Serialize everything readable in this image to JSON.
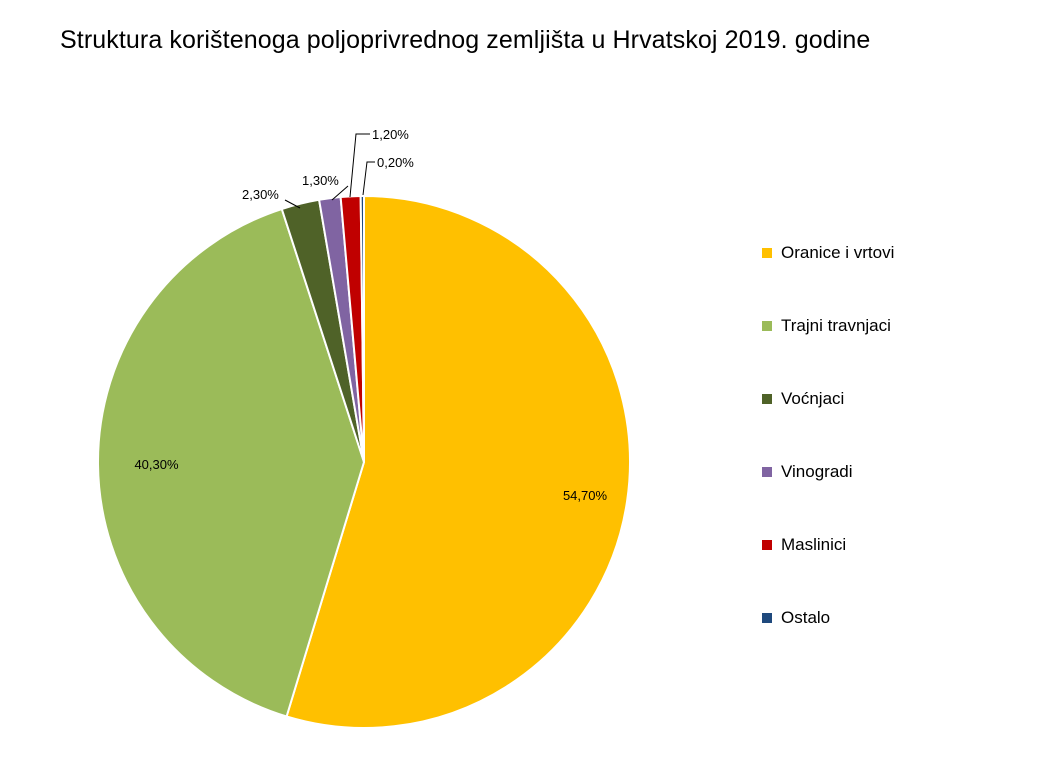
{
  "chart_data": {
    "type": "pie",
    "title": "Struktura korištenoga poljoprivrednog zemljišta u Hrvatskoj 2019. godine",
    "categories": [
      "Oranice i vrtovi",
      "Trajni travnjaci",
      "Voćnjaci",
      "Vinogradi",
      "Maslinici",
      "Ostalo"
    ],
    "values": [
      54.7,
      40.3,
      2.3,
      1.3,
      1.2,
      0.2
    ],
    "data_labels": [
      "54,70%",
      "40,30%",
      "2,30%",
      "1,30%",
      "1,20%",
      "0,20%"
    ],
    "colors": [
      "#FFC000",
      "#9BBB59",
      "#4F6228",
      "#8064A2",
      "#C00000",
      "#1F497D"
    ],
    "legend_position": "right",
    "start_angle": "top, clockwise"
  }
}
